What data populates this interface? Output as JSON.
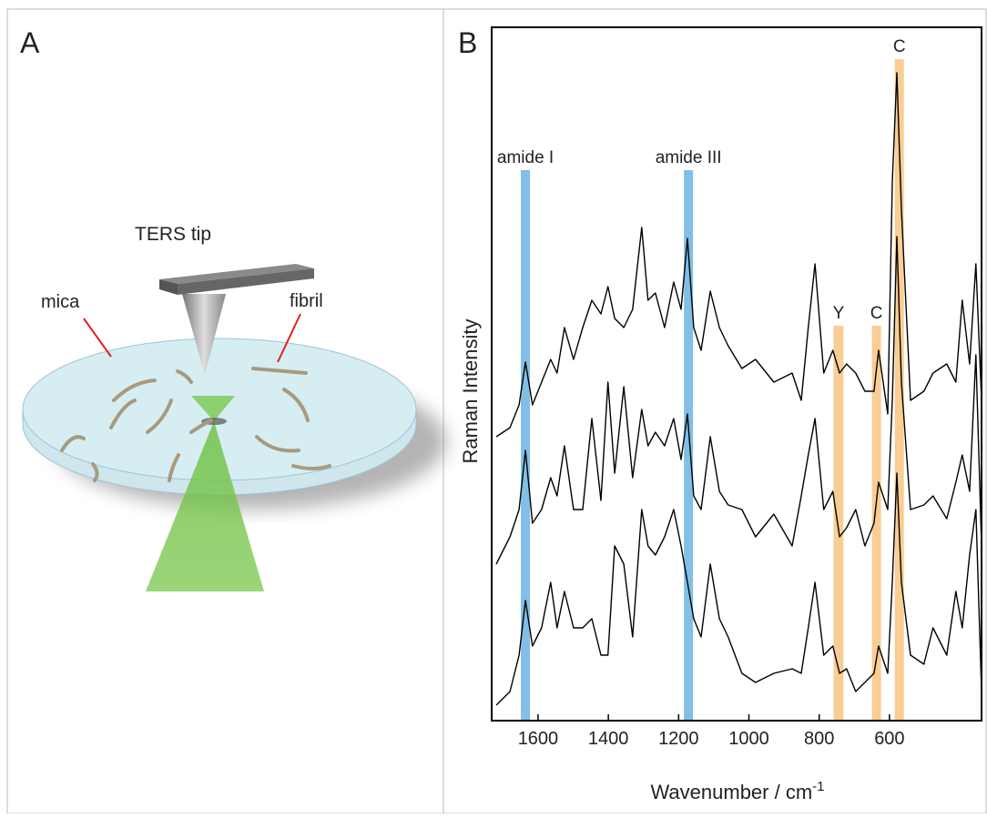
{
  "panel_a": {
    "label": "A",
    "tip_label": "TERS tip",
    "mica_label": "mica",
    "fibril_label": "fibril"
  },
  "chart_data": {
    "type": "line",
    "panel_label": "B",
    "x_label": "Wavenumber / cm",
    "x_label_superscript": "-1",
    "y_label": "Raman Intensity",
    "xlim": [
      1732,
      338
    ],
    "xticks": [
      1600,
      1400,
      1200,
      1000,
      800,
      600
    ],
    "ylim": [
      0,
      762
    ],
    "x": [
      1719,
      1680,
      1654,
      1636,
      1616,
      1590,
      1564,
      1546,
      1525,
      1499,
      1473,
      1447,
      1421,
      1401,
      1382,
      1356,
      1331,
      1305,
      1287,
      1266,
      1240,
      1214,
      1193,
      1175,
      1157,
      1136,
      1110,
      1084,
      1059,
      1020,
      981,
      929,
      877,
      851,
      831,
      812,
      787,
      761,
      742,
      722,
      696,
      670,
      644,
      631,
      605,
      592,
      579,
      566,
      540,
      502,
      476,
      437,
      411,
      393,
      372,
      354,
      338
    ],
    "series": [
      {
        "color": "#000000",
        "values": [
          312,
          322,
          347,
          394,
          347,
          372,
          397,
          382,
          432,
          397,
          432,
          462,
          447,
          477,
          442,
          432,
          452,
          542,
          462,
          470,
          432,
          482,
          452,
          530,
          432,
          407,
          472,
          432,
          412,
          387,
          397,
          372,
          382,
          352,
          432,
          502,
          382,
          407,
          382,
          392,
          382,
          362,
          362,
          407,
          337,
          592,
          712,
          562,
          352,
          362,
          382,
          392,
          372,
          462,
          392,
          502,
          352
        ]
      },
      {
        "color": "#000000",
        "values": [
          172,
          202,
          232,
          297,
          217,
          232,
          267,
          247,
          302,
          232,
          232,
          332,
          242,
          372,
          272,
          367,
          267,
          342,
          302,
          317,
          302,
          332,
          287,
          337,
          247,
          232,
          312,
          252,
          237,
          232,
          202,
          227,
          192,
          247,
          292,
          332,
          232,
          252,
          202,
          212,
          232,
          192,
          217,
          262,
          232,
          352,
          532,
          372,
          232,
          237,
          247,
          222,
          262,
          292,
          252,
          402,
          192
        ]
      },
      {
        "color": "#000000",
        "values": [
          17,
          32,
          72,
          132,
          82,
          102,
          152,
          102,
          142,
          102,
          102,
          112,
          72,
          72,
          192,
          172,
          92,
          232,
          192,
          182,
          202,
          232,
          192,
          152,
          112,
          92,
          172,
          112,
          92,
          52,
          42,
          52,
          57,
          52,
          102,
          152,
          72,
          82,
          52,
          57,
          32,
          42,
          52,
          82,
          52,
          152,
          272,
          152,
          72,
          62,
          102,
          72,
          142,
          102,
          182,
          232,
          32
        ]
      }
    ],
    "bands": [
      {
        "label": "amide I",
        "xrange": [
          1649,
          1623
        ],
        "color": "#74b7e3"
      },
      {
        "label": "amide III",
        "xrange": [
          1185,
          1159
        ],
        "color": "#74b7e3"
      },
      {
        "label": "Y",
        "xrange": [
          759,
          731
        ],
        "color": "#f8c888"
      },
      {
        "label": "C",
        "xrange": [
          650,
          624
        ],
        "color": "#f8c888"
      },
      {
        "label": "C",
        "xrange": [
          585,
          559
        ],
        "color": "#f8c888"
      }
    ]
  }
}
